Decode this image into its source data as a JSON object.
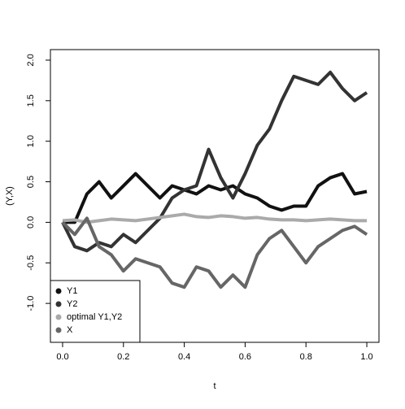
{
  "chart_data": {
    "type": "line",
    "x_label": "t",
    "y_label": "(Y,X)",
    "x": [
      0,
      0.04,
      0.08,
      0.12,
      0.16,
      0.2,
      0.24,
      0.28,
      0.32,
      0.36,
      0.4,
      0.44,
      0.48,
      0.52,
      0.56,
      0.6,
      0.64,
      0.68,
      0.72,
      0.76,
      0.8,
      0.84,
      0.88,
      0.92,
      0.96,
      1
    ],
    "series": [
      {
        "name": "Y1",
        "color": "#111111",
        "values": [
          0,
          0.0,
          0.35,
          0.5,
          0.3,
          0.45,
          0.6,
          0.45,
          0.3,
          0.45,
          0.4,
          0.35,
          0.45,
          0.4,
          0.45,
          0.35,
          0.3,
          0.2,
          0.15,
          0.2,
          0.2,
          0.45,
          0.55,
          0.6,
          0.35,
          0.38
        ]
      },
      {
        "name": "Y2",
        "color": "#333333",
        "values": [
          0,
          -0.3,
          -0.35,
          -0.25,
          -0.3,
          -0.15,
          -0.25,
          -0.1,
          0.05,
          0.3,
          0.4,
          0.45,
          0.9,
          0.55,
          0.3,
          0.6,
          0.95,
          1.15,
          1.5,
          1.8,
          1.75,
          1.7,
          1.85,
          1.65,
          1.5,
          1.6
        ]
      },
      {
        "name": "optimal Y1,Y2",
        "color": "#aaaaaa",
        "values": [
          0.02,
          0.03,
          0.0,
          0.02,
          0.04,
          0.03,
          0.02,
          0.04,
          0.06,
          0.08,
          0.1,
          0.07,
          0.06,
          0.08,
          0.07,
          0.05,
          0.06,
          0.04,
          0.03,
          0.03,
          0.02,
          0.03,
          0.04,
          0.03,
          0.02,
          0.02
        ]
      },
      {
        "name": "X",
        "color": "#666666",
        "values": [
          0,
          -0.15,
          0.05,
          -0.3,
          -0.4,
          -0.6,
          -0.45,
          -0.5,
          -0.55,
          -0.75,
          -0.8,
          -0.55,
          -0.6,
          -0.8,
          -0.65,
          -0.8,
          -0.4,
          -0.2,
          -0.1,
          -0.3,
          -0.5,
          -0.3,
          -0.2,
          -0.1,
          -0.05,
          -0.15
        ]
      }
    ],
    "xlim": [
      -0.04,
      1.04
    ],
    "ylim": [
      -1.48,
      2.13
    ],
    "xticks": [
      {
        "value": 0,
        "label": "0.0"
      },
      0.2,
      0.4,
      0.6,
      0.8,
      {
        "value": 1,
        "label": "1.0"
      }
    ],
    "yticks": [
      {
        "value": -1,
        "label": "-1.0"
      },
      -0.5,
      {
        "value": 0,
        "label": "0.0"
      },
      0.5,
      {
        "value": 1,
        "label": "1.0"
      },
      1.5,
      {
        "value": 2,
        "label": "2.0"
      }
    ],
    "legend": "bottomleft"
  }
}
